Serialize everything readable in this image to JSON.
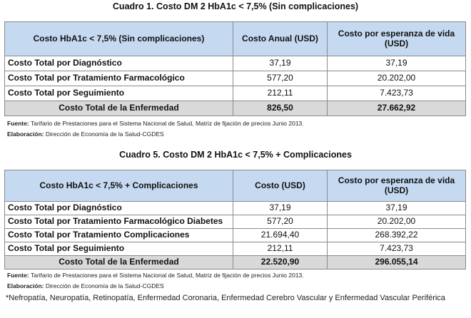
{
  "t1": {
    "caption": "Cuadro 1. Costo DM 2 HbA1c < 7,5% (Sin complicaciones)",
    "headers": [
      "Costo HbA1c < 7,5% (Sin complicaciones)",
      "Costo Anual (USD)",
      "Costo por esperanza de vida (USD)"
    ],
    "rows": [
      [
        "Costo Total por Diagnóstico",
        "37,19",
        "37,19"
      ],
      [
        "Costo Total por Tratamiento Farmacológico",
        "577,20",
        "20.202,00"
      ],
      [
        "Costo Total por Seguimiento",
        "212,11",
        "7.423,73"
      ]
    ],
    "total": [
      "Costo Total de la Enfermedad",
      "826,50",
      "27.662,92"
    ],
    "source_label": "Fuente:",
    "source": "Tarifario de Prestaciones para el Sistema Nacional de Salud, Matriz de fijación de precios Junio 2013.",
    "elab_label": "Elaboración:",
    "elab": "Dirección de Economía de la Salud-CGDES"
  },
  "t5": {
    "caption": "Cuadro 5. Costo DM 2 HbA1c < 7,5% + Complicaciones",
    "headers": [
      "Costo HbA1c < 7,5% + Complicaciones",
      "Costo (USD)",
      "Costo por esperanza de vida (USD)"
    ],
    "rows": [
      [
        "Costo Total por Diagnóstico",
        "37,19",
        "37,19"
      ],
      [
        "Costo Total por Tratamiento Farmacológico Diabetes",
        "577,20",
        "20.202,00"
      ],
      [
        "Costo Total por Tratamiento Complicaciones",
        "21.694,40",
        "268.392,22"
      ],
      [
        "Costo Total por Seguimiento",
        "212,11",
        "7.423,73"
      ]
    ],
    "total": [
      "Costo Total de la Enfermedad",
      "22.520,90",
      "296.055,14"
    ],
    "source_label": "Fuente:",
    "source": "Tarifario de Prestaciones para el Sistema Nacional de Salud, Matriz de fijación de precios Junio 2013.",
    "elab_label": "Elaboración:",
    "elab": "Dirección de Economía de la Salud-CGDES",
    "footnote": "*Nefropatía, Neuropatía, Retinopatía, Enfermedad Coronaria, Enfermedad Cerebro Vascular y Enfermedad Vascular Periférica"
  }
}
